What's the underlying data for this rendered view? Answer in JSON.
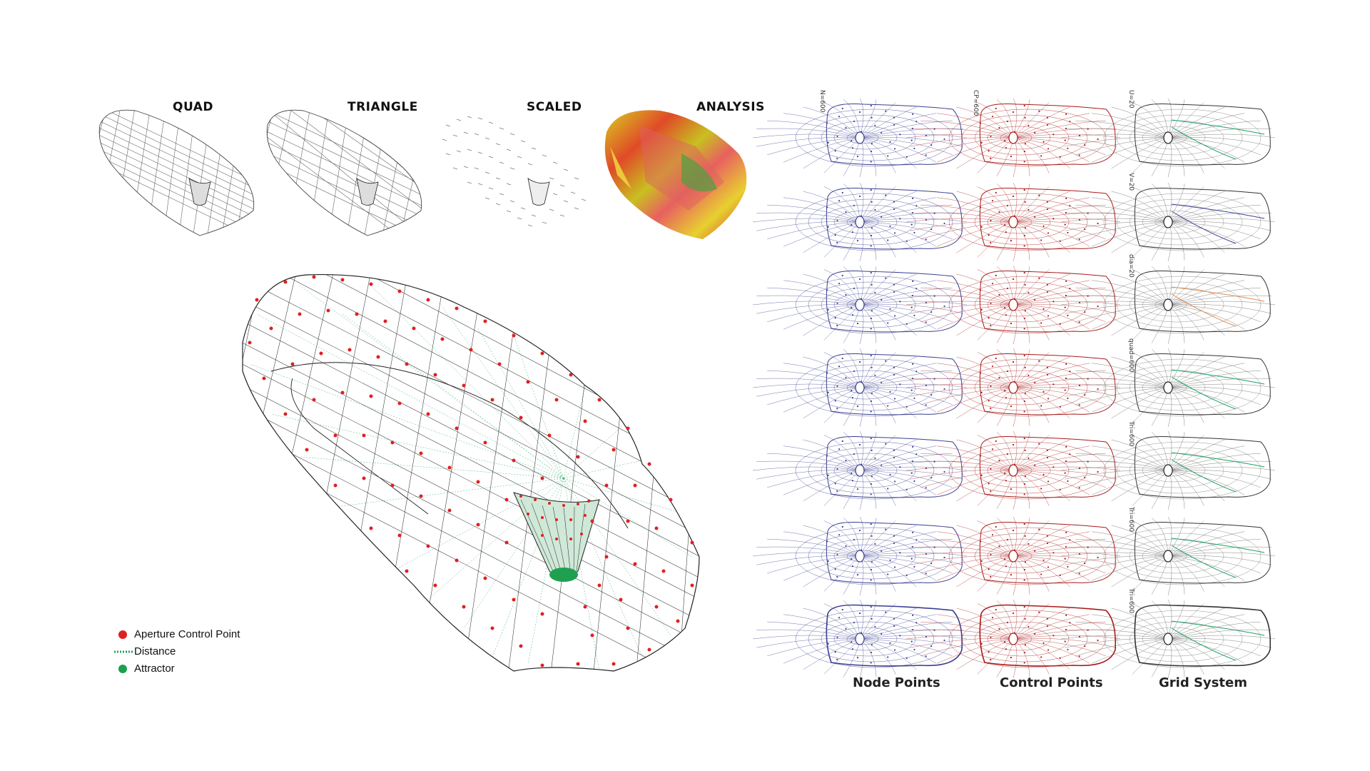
{
  "top_row": {
    "quad": "QUAD",
    "triangle": "TRIANGLE",
    "scaled": "SCALED",
    "analysis": "ANALYSIS"
  },
  "legend": {
    "aperture": "Aperture Control Point",
    "distance": "Distance",
    "attractor": "Attractor"
  },
  "columns": {
    "node": "Node Points",
    "control": "Control Points",
    "grid": "Grid System"
  },
  "row_labels": {
    "node": "N=600",
    "control": "CP=600",
    "grid": [
      "U=20",
      "V=20",
      "dia=20",
      "quad=600",
      "Tri=600",
      "Tri=600",
      "Tri=600"
    ]
  },
  "colors": {
    "node": "#3a3f8f",
    "control": "#a81a1a",
    "green": "#1aa060",
    "orange": "#e08a4a",
    "accent_red": "#e02020"
  }
}
